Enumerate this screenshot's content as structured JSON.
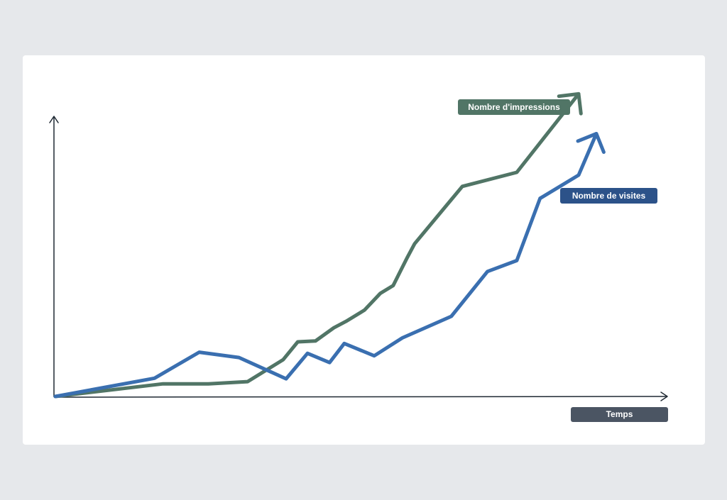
{
  "chart_data": {
    "type": "line",
    "title": "",
    "xlabel": "Temps",
    "ylabel": "",
    "xlim": [
      0,
      100
    ],
    "ylim": [
      0,
      100
    ],
    "grid": false,
    "legend": "inline-labels",
    "series": [
      {
        "name": "Nombre d'impressions",
        "color": "#517566",
        "x": [
          0,
          17.6,
          25,
          31.4,
          37.2,
          39.6,
          42.5,
          45.5,
          47.5,
          50.5,
          53.1,
          55.2,
          57.4,
          58.7,
          66.5,
          75.4,
          85.5
        ],
        "y": [
          0,
          4.5,
          4.5,
          5.3,
          13.1,
          19.5,
          19.8,
          24.5,
          26.8,
          30.8,
          36.8,
          39.6,
          49.2,
          54.5,
          75,
          80,
          108
        ]
      },
      {
        "name": "Nombre de visites",
        "color": "#3a6fb0",
        "x": [
          0,
          16.2,
          23.5,
          30,
          37.7,
          41.2,
          44.8,
          47.2,
          52.1,
          56.7,
          64.7,
          70.6,
          75.4,
          75.4,
          79.2,
          85.5,
          88.4
        ],
        "y": [
          0,
          6.5,
          15.8,
          13.9,
          6.3,
          15.4,
          12.1,
          18.9,
          14.5,
          20.9,
          28.6,
          44.6,
          48.5,
          48.5,
          70.7,
          79,
          93.8
        ]
      }
    ],
    "annotations": {
      "impressions_label": "Nombre d'impressions",
      "visites_label": "Nombre de visites"
    }
  },
  "colors": {
    "background": "#e6e8eb",
    "card": "#ffffff",
    "axis": "#1f2933",
    "impressions": "#517566",
    "visites": "#3a6fb0",
    "visites_tag": "#2c5289",
    "temps_tag": "#4b5563"
  }
}
